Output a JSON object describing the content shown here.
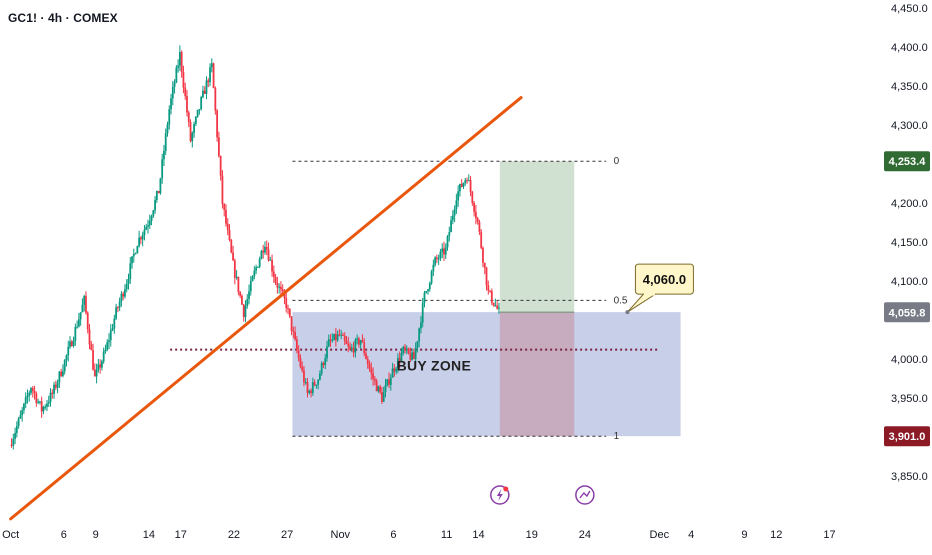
{
  "header": {
    "title": "GC1! · 4h · COMEX"
  },
  "colors": {
    "up": "#089981",
    "down": "#f23645",
    "trendline": "#e8570c",
    "buy_zone": "#b8c1e3",
    "target": "#a9c7ab",
    "stop": "#c7a6b9",
    "level_line": "#7a1f3d",
    "last_price": "#787b86",
    "target_badge": "#2f6b32",
    "stop_badge": "#8b1a25",
    "callout_bg": "#fff7c9",
    "callout_border": "#7a6a2a"
  },
  "chart_data": {
    "type": "candlestick",
    "title": "GC1! · 4h · COMEX",
    "x_ticks": [
      {
        "day": 0,
        "label": "Oct"
      },
      {
        "day": 5,
        "label": "6"
      },
      {
        "day": 8,
        "label": "9"
      },
      {
        "day": 13,
        "label": "14"
      },
      {
        "day": 16,
        "label": "17"
      },
      {
        "day": 21,
        "label": "22"
      },
      {
        "day": 26,
        "label": "27"
      },
      {
        "day": 31,
        "label": "Nov"
      },
      {
        "day": 36,
        "label": "6"
      },
      {
        "day": 41,
        "label": "11"
      },
      {
        "day": 44,
        "label": "14"
      },
      {
        "day": 49,
        "label": "19"
      },
      {
        "day": 54,
        "label": "24"
      },
      {
        "day": 61,
        "label": "Dec"
      },
      {
        "day": 64,
        "label": "4"
      },
      {
        "day": 69,
        "label": "9"
      },
      {
        "day": 72,
        "label": "12"
      },
      {
        "day": 77,
        "label": "17"
      }
    ],
    "y_ticks": [
      {
        "value": 4450,
        "label": "4,450.0"
      },
      {
        "value": 4400,
        "label": "4,400.0"
      },
      {
        "value": 4350,
        "label": "4,350.0"
      },
      {
        "value": 4300,
        "label": "4,300.0"
      },
      {
        "value": 4200,
        "label": "4,200.0"
      },
      {
        "value": 4150,
        "label": "4,150.0"
      },
      {
        "value": 4100,
        "label": "4,100.0"
      },
      {
        "value": 4000,
        "label": "4,000.0"
      },
      {
        "value": 3950,
        "label": "3,950.0"
      },
      {
        "value": 3850,
        "label": "3,850.0"
      }
    ],
    "ylim": [
      3800,
      4460
    ],
    "xlim": [
      -1,
      81
    ],
    "price_path": [
      [
        0,
        3890
      ],
      [
        1,
        3925
      ],
      [
        2,
        3965
      ],
      [
        3,
        3935
      ],
      [
        4,
        3955
      ],
      [
        5,
        3990
      ],
      [
        6,
        4030
      ],
      [
        7,
        4075
      ],
      [
        8,
        3975
      ],
      [
        9,
        4010
      ],
      [
        10,
        4060
      ],
      [
        11,
        4100
      ],
      [
        12,
        4150
      ],
      [
        13,
        4175
      ],
      [
        14,
        4215
      ],
      [
        15,
        4320
      ],
      [
        16,
        4390
      ],
      [
        17,
        4280
      ],
      [
        18,
        4330
      ],
      [
        19,
        4375
      ],
      [
        20,
        4200
      ],
      [
        21,
        4120
      ],
      [
        22,
        4060
      ],
      [
        23,
        4110
      ],
      [
        24,
        4150
      ],
      [
        25,
        4100
      ],
      [
        26,
        4070
      ],
      [
        27,
        4010
      ],
      [
        28,
        3955
      ],
      [
        29,
        3975
      ],
      [
        30,
        4020
      ],
      [
        31,
        4030
      ],
      [
        32,
        4010
      ],
      [
        33,
        4025
      ],
      [
        34,
        3980
      ],
      [
        35,
        3950
      ],
      [
        36,
        3985
      ],
      [
        37,
        4010
      ],
      [
        38,
        4000
      ],
      [
        39,
        4080
      ],
      [
        40,
        4125
      ],
      [
        41,
        4140
      ],
      [
        42,
        4210
      ],
      [
        43,
        4235
      ],
      [
        44,
        4175
      ],
      [
        45,
        4085
      ],
      [
        46,
        4060
      ]
    ],
    "trendline": {
      "from": [
        0,
        3795
      ],
      "to": [
        48,
        4335
      ]
    },
    "fib_levels": [
      {
        "label": "0",
        "value": 4253.4
      },
      {
        "label": "0.5",
        "value": 4075
      },
      {
        "label": "1",
        "value": 3901
      }
    ],
    "support_line": {
      "value": 4012,
      "from_day": 15,
      "to_day": 61
    },
    "buy_zone": {
      "label": "BUY ZONE",
      "from_day": 26.5,
      "to_day": 63,
      "top": 4060,
      "bottom": 3901
    },
    "position": {
      "from_day": 46,
      "to_day": 53,
      "entry": 4060,
      "target": 4253.4,
      "stop": 3901
    },
    "callout": {
      "text": "4,060.0",
      "day": 58,
      "value": 4060
    },
    "badges": [
      {
        "label": "4,253.4",
        "value": 4253.4,
        "kind": "target"
      },
      {
        "label": "4,059.8",
        "value": 4059.8,
        "kind": "last"
      },
      {
        "label": "3,901.0",
        "value": 3901.0,
        "kind": "stop"
      }
    ],
    "event_icons": [
      {
        "day": 46,
        "icon": "lightning-icon"
      },
      {
        "day": 54,
        "icon": "forecast-icon"
      }
    ]
  }
}
